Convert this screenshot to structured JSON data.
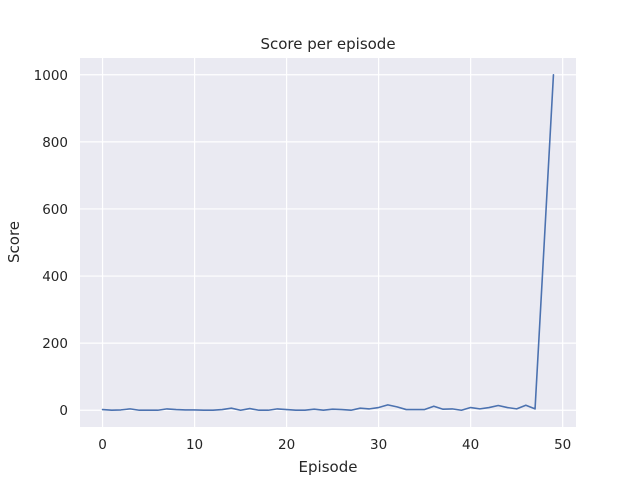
{
  "chart_data": {
    "type": "line",
    "title": "Score per episode",
    "xlabel": "Episode",
    "ylabel": "Score",
    "xlim": [
      -2.45,
      51.45
    ],
    "ylim": [
      -50,
      1050
    ],
    "xticks": [
      0,
      10,
      20,
      30,
      40,
      50
    ],
    "yticks": [
      0,
      200,
      400,
      600,
      800,
      1000
    ],
    "grid": true,
    "colors": {
      "plot_background": "#eaeaf2",
      "grid": "#ffffff",
      "line": "#4c72b0",
      "text": "#262626"
    },
    "series": [
      {
        "x": [
          0,
          1,
          2,
          3,
          4,
          5,
          6,
          7,
          8,
          9,
          10,
          11,
          12,
          13,
          14,
          15,
          16,
          17,
          18,
          19,
          20,
          21,
          22,
          23,
          24,
          25,
          26,
          27,
          28,
          29,
          30,
          31,
          32,
          33,
          34,
          35,
          36,
          37,
          38,
          39,
          40,
          41,
          42,
          43,
          44,
          45,
          46,
          47,
          48,
          49
        ],
        "values": [
          2,
          0,
          1,
          4,
          0,
          0,
          0,
          4,
          2,
          1,
          1,
          0,
          0,
          2,
          6,
          0,
          5,
          0,
          0,
          4,
          2,
          0,
          0,
          3,
          0,
          3,
          2,
          0,
          6,
          4,
          8,
          16,
          10,
          2,
          2,
          2,
          12,
          3,
          4,
          0,
          8,
          4,
          8,
          14,
          8,
          4,
          15,
          4,
          500,
          1000
        ]
      }
    ]
  }
}
